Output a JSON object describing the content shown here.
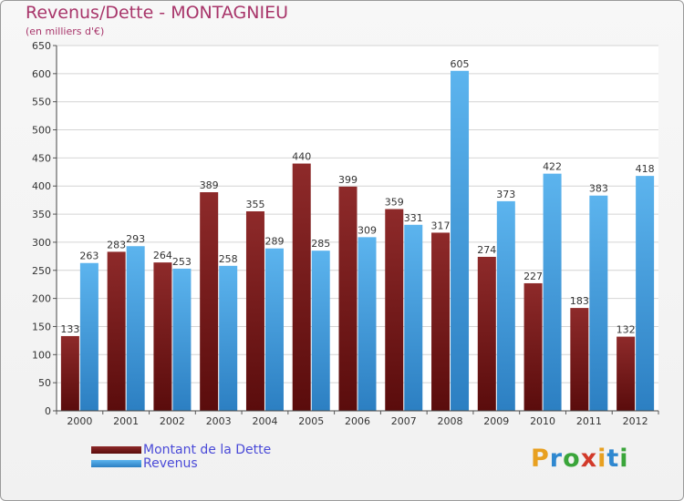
{
  "title": "Revenus/Dette - MONTAGNIEU",
  "subtitle": "(en milliers d'€)",
  "colors": {
    "dette": "#7b1d1d",
    "revenus": "#4aa8e8",
    "title": "#a8356a",
    "legend_text": "#4a4ad8"
  },
  "logo": {
    "text": "Proxiti",
    "letters": [
      "P",
      "r",
      "o",
      "x",
      "i",
      "t",
      "i"
    ]
  },
  "chart_data": {
    "type": "bar",
    "title": "Revenus/Dette - MONTAGNIEU",
    "subtitle": "(en milliers d'€)",
    "categories": [
      "2000",
      "2001",
      "2002",
      "2003",
      "2004",
      "2005",
      "2006",
      "2007",
      "2008",
      "2009",
      "2010",
      "2011",
      "2012"
    ],
    "series": [
      {
        "name": "Montant de la Dette",
        "values": [
          133,
          283,
          264,
          389,
          355,
          440,
          399,
          359,
          317,
          274,
          227,
          183,
          132
        ]
      },
      {
        "name": "Revenus",
        "values": [
          263,
          293,
          253,
          258,
          289,
          285,
          309,
          331,
          605,
          373,
          422,
          383,
          418
        ]
      }
    ],
    "ylim": [
      0,
      650
    ],
    "yticks": [
      0,
      50,
      100,
      150,
      200,
      250,
      300,
      350,
      400,
      450,
      500,
      550,
      600,
      650
    ],
    "grid": true,
    "legend": "bottom-left"
  }
}
